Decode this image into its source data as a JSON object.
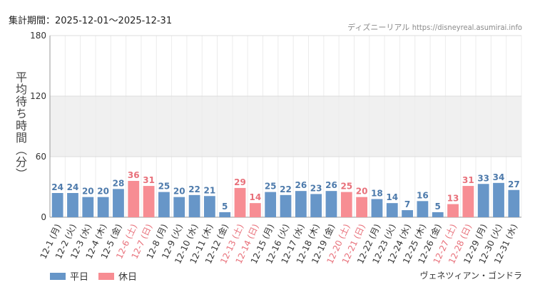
{
  "header": {
    "period_label": "集計期間：2025-12-01〜2025-12-31",
    "credit_site": "ディズニーリアル",
    "credit_url": "https://disneyreal.asumirai.info"
  },
  "footer": {
    "attraction": "ヴェネツィアン・ゴンドラ"
  },
  "chart_data": {
    "type": "bar",
    "ylabel": "平均待ち時間（分）",
    "ylim": [
      0,
      180
    ],
    "yticks": [
      0,
      60,
      120,
      180
    ],
    "grid": true,
    "legend_position": "bottom-left",
    "shaded_band": [
      60,
      120
    ],
    "series_legend": [
      {
        "name": "平日",
        "color": "#6796c8"
      },
      {
        "name": "休日",
        "color": "#f78d93"
      }
    ],
    "categories": [
      "12-1 (月)",
      "12-2 (火)",
      "12-3 (水)",
      "12-4 (木)",
      "12-5 (金)",
      "12-6 (土)",
      "12-7 (日)",
      "12-8 (月)",
      "12-9 (火)",
      "12-10 (水)",
      "12-11 (木)",
      "12-12 (金)",
      "12-13 (土)",
      "12-14 (日)",
      "12-15 (月)",
      "12-16 (火)",
      "12-17 (水)",
      "12-18 (木)",
      "12-19 (金)",
      "12-20 (土)",
      "12-21 (日)",
      "12-22 (月)",
      "12-23 (火)",
      "12-24 (水)",
      "12-25 (木)",
      "12-26 (金)",
      "12-27 (土)",
      "12-28 (日)",
      "12-29 (月)",
      "12-30 (火)",
      "12-31 (水)"
    ],
    "values": [
      24,
      24,
      20,
      20,
      28,
      36,
      31,
      25,
      20,
      22,
      21,
      5,
      29,
      14,
      25,
      22,
      26,
      23,
      26,
      25,
      20,
      18,
      14,
      7,
      16,
      5,
      13,
      31,
      33,
      34,
      27
    ],
    "holiday": [
      false,
      false,
      false,
      false,
      false,
      true,
      true,
      false,
      false,
      false,
      false,
      false,
      true,
      true,
      false,
      false,
      false,
      false,
      false,
      true,
      true,
      false,
      false,
      false,
      false,
      false,
      true,
      true,
      false,
      false,
      false
    ]
  }
}
